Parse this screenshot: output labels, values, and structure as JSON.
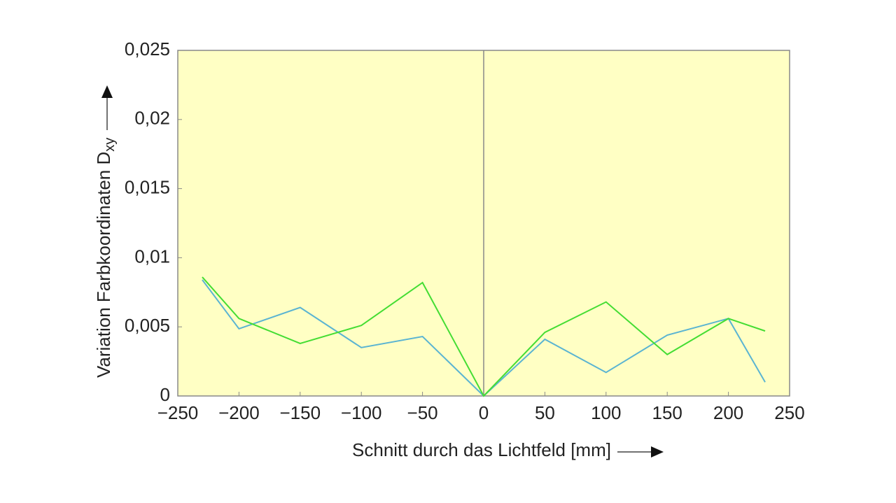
{
  "chart_data": {
    "type": "line",
    "xlabel": "Schnitt durch das Lichtfeld [mm]",
    "ylabel": "Variation Farbkoordinaten D",
    "ylabel_sub": "xy",
    "x": [
      -230,
      -200,
      -150,
      -100,
      -50,
      0,
      50,
      100,
      150,
      200,
      230
    ],
    "series": [
      {
        "color": "#5ab4d2",
        "values": [
          0.0084,
          0.00486,
          0.0064,
          0.0035,
          0.0043,
          0,
          0.0041,
          0.0017,
          0.0044,
          0.0056,
          0.001
        ]
      },
      {
        "color": "#44dd33",
        "values": [
          0.0086,
          0.0056,
          0.0038,
          0.0051,
          0.0082,
          0,
          0.0046,
          0.0068,
          0.003,
          0.0056,
          0.0047
        ]
      }
    ],
    "xlim": [
      -250,
      250
    ],
    "xticks": [
      {
        "value": -250,
        "label": "−250"
      },
      {
        "value": -200,
        "label": "−200"
      },
      {
        "value": -150,
        "label": "−150"
      },
      {
        "value": -100,
        "label": "−100"
      },
      {
        "value": -50,
        "label": "−50"
      },
      0,
      50,
      100,
      150,
      200,
      250
    ],
    "ylim": [
      0,
      0.025
    ],
    "yticks": [
      0,
      {
        "value": 0.005,
        "label": "0,005"
      },
      {
        "value": 0.01,
        "label": "0,01"
      },
      {
        "value": 0.015,
        "label": "0,015"
      },
      {
        "value": 0.02,
        "label": "0,02"
      },
      {
        "value": 0.025,
        "label": "0,025"
      }
    ],
    "background": "#ffffc4",
    "zero_line": true
  }
}
